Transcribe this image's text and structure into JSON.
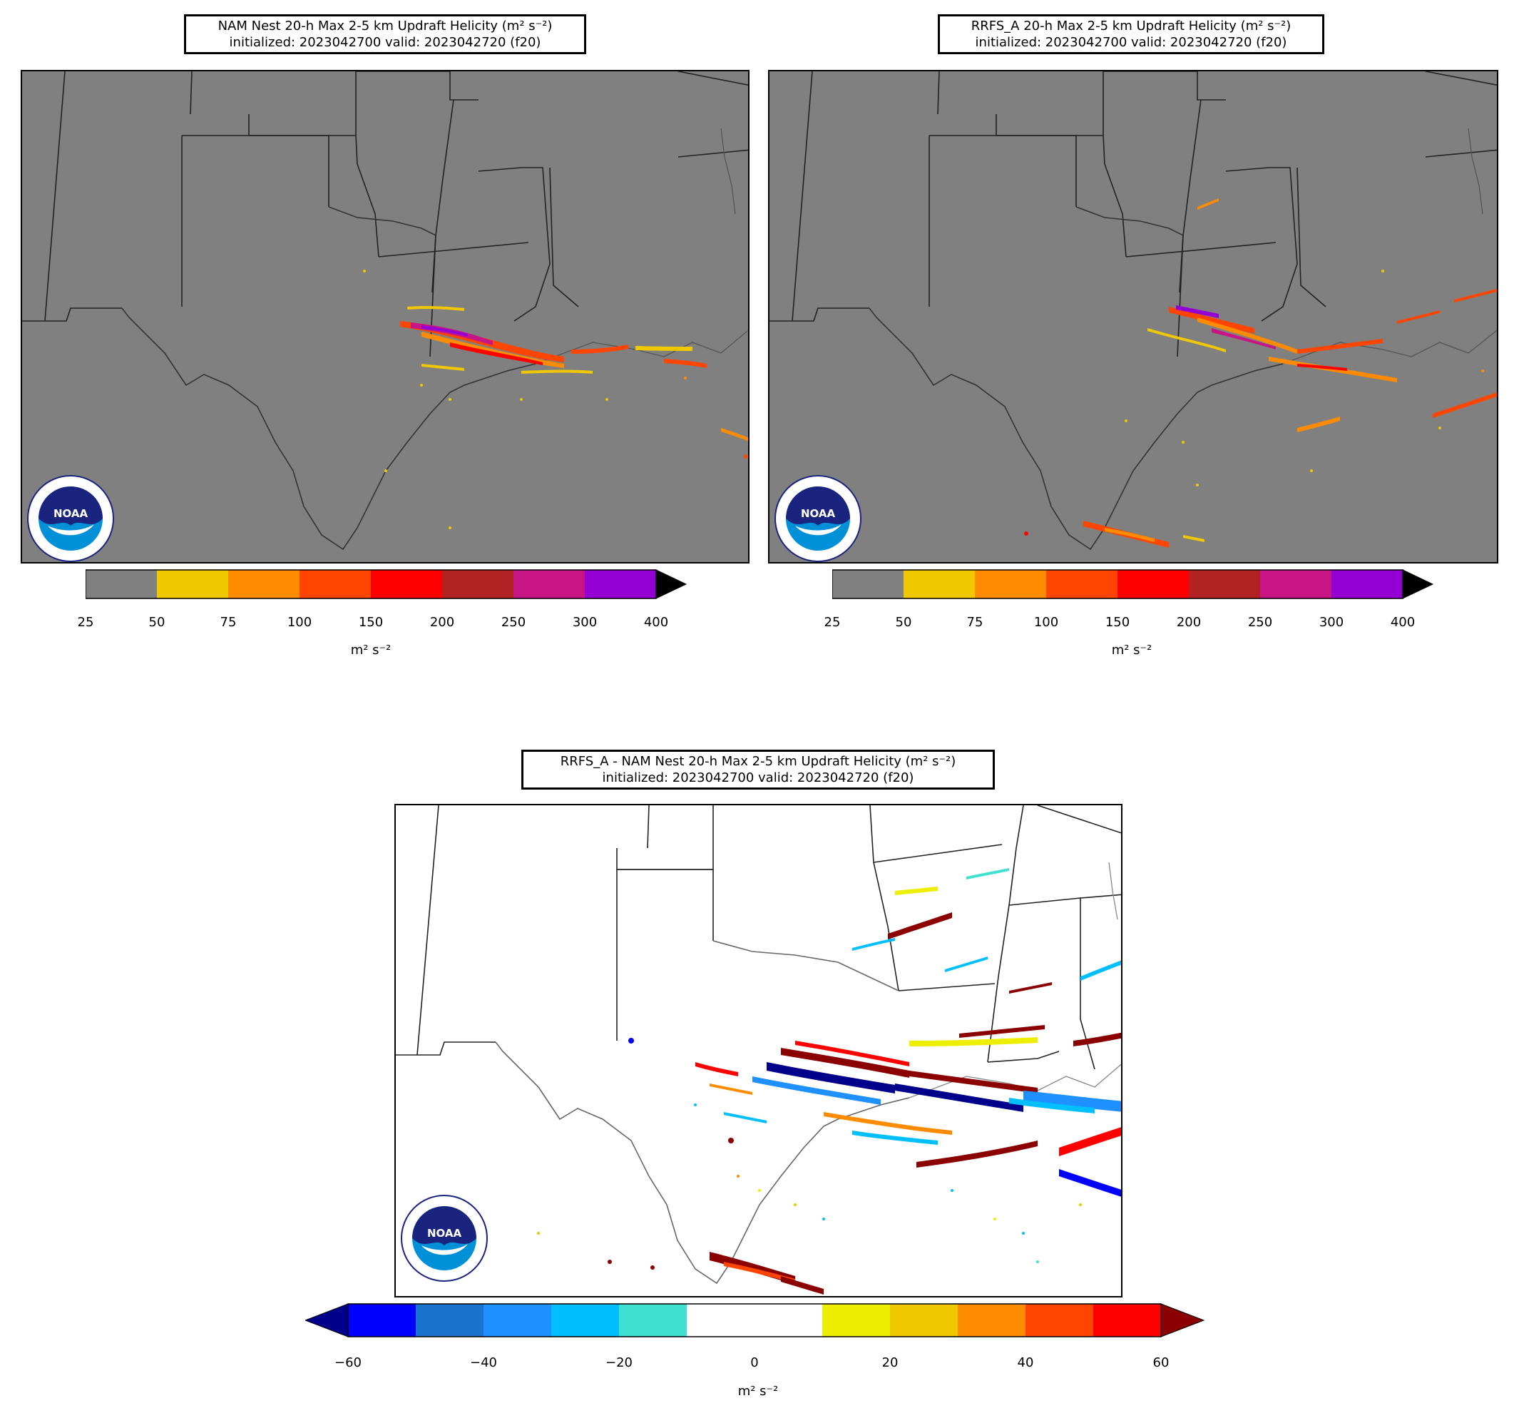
{
  "panels": [
    {
      "id": "nam",
      "title_line1": "NAM Nest 20-h Max 2-5 km Updraft Helicity (m² s⁻²)",
      "title_line2": "initialized: 2023042700 valid: 2023042720 (f20)"
    },
    {
      "id": "rrfs",
      "title_line1": "RRFS_A 20-h Max 2-5 km Updraft Helicity (m² s⁻²)",
      "title_line2": "initialized: 2023042700 valid: 2023042720 (f20)"
    },
    {
      "id": "diff",
      "title_line1": "RRFS_A - NAM Nest 20-h Max 2-5 km Updraft Helicity (m² s⁻²)",
      "title_line2": "initialized: 2023042700 valid: 2023042720 (f20)"
    }
  ],
  "colorbar_top": {
    "ticks": [
      "25",
      "50",
      "75",
      "100",
      "150",
      "200",
      "250",
      "300",
      "400"
    ],
    "colors": [
      "#808080",
      "#f0c800",
      "#ff8c00",
      "#ff4500",
      "#ff0000",
      "#b22222",
      "#c71585",
      "#9400d3"
    ],
    "extend_color": "#000000",
    "unit": "m² s⁻²"
  },
  "colorbar_diff": {
    "ticks": [
      "−60",
      "−40",
      "−20",
      "0",
      "20",
      "40",
      "60"
    ],
    "colors": [
      "#0000ff",
      "#1874cd",
      "#1e90ff",
      "#00bfff",
      "#40e0d0",
      "#ffffff",
      "#ffffff",
      "#eeee00",
      "#f0c800",
      "#ff8c00",
      "#ff4500",
      "#ff0000"
    ],
    "extend_low_color": "#00008b",
    "extend_high_color": "#8b0000",
    "unit": "m² s⁻²"
  },
  "logo": {
    "text": "NOAA",
    "ring_top": "NATIONAL OCEANIC AND ATMOSPHERIC ADMINISTRATION",
    "ring_bottom": "U.S. DEPARTMENT OF COMMERCE"
  },
  "colors": {
    "map_fill_top": "#808080",
    "map_fill_diff": "#ffffff",
    "border": "#000000"
  }
}
